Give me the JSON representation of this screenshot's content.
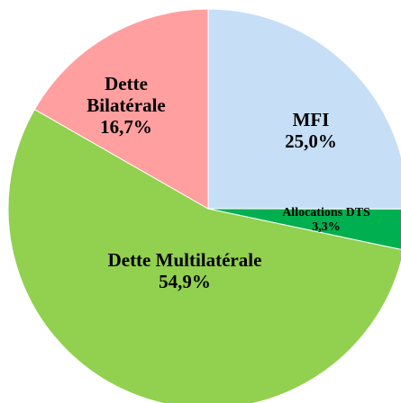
{
  "chart_data": {
    "type": "pie",
    "categories": [
      "MFI",
      "Allocations DTS",
      "Dette Multilatérale",
      "Dette Bilatérale"
    ],
    "values": [
      25.0,
      3.3,
      54.9,
      16.7
    ],
    "value_labels": [
      "25,0%",
      "3,3%",
      "54,9%",
      "16,7%"
    ],
    "colors": [
      "#c6dff7",
      "#00b050",
      "#92d050",
      "#ff9f9f"
    ]
  }
}
